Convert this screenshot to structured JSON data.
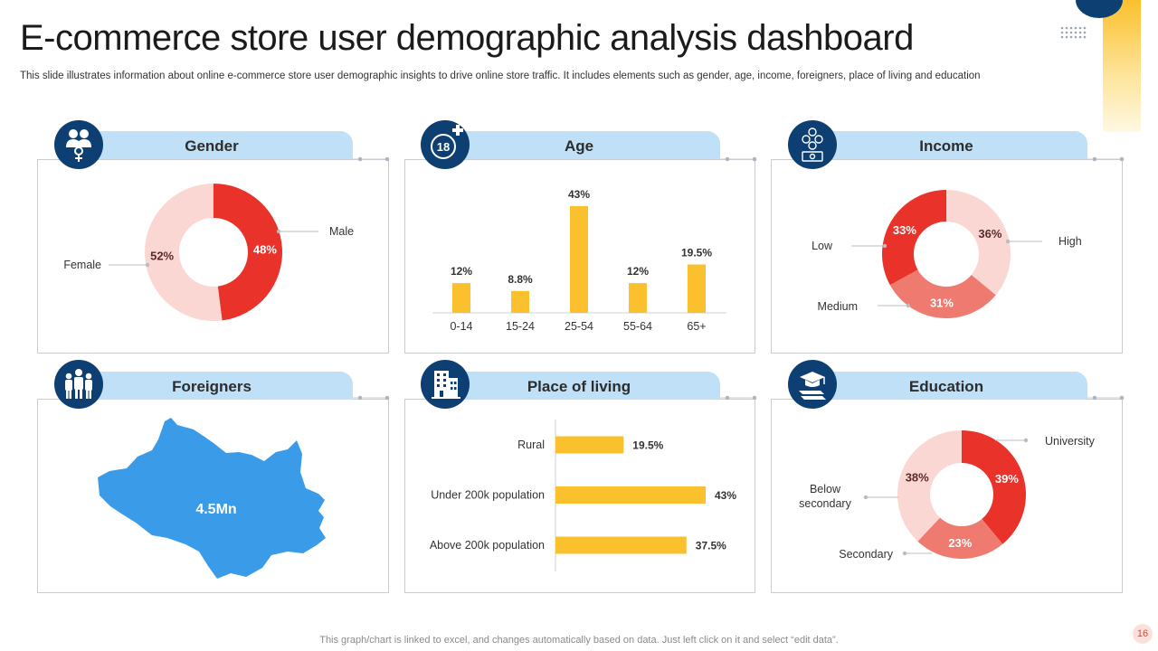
{
  "header": {
    "title": "E-commerce store user demographic analysis dashboard",
    "subtitle": "This slide illustrates information about online e-commerce store user demographic insights to drive online store traffic. It includes elements such as gender, age, income, foreigners, place of living and education"
  },
  "panels": {
    "gender": {
      "label": "Gender",
      "icon": "gender-icon"
    },
    "age": {
      "label": "Age",
      "icon": "age-18-plus-icon"
    },
    "income": {
      "label": "Income",
      "icon": "money-icon"
    },
    "foreigners": {
      "label": "Foreigners",
      "icon": "people-group-icon",
      "value": "4.5Mn",
      "map_color": "#3a9be8"
    },
    "place": {
      "label": "Place of living",
      "icon": "building-icon"
    },
    "education": {
      "label": "Education",
      "icon": "graduation-cap-icon"
    }
  },
  "chart_data": [
    {
      "id": "gender",
      "type": "pie",
      "labels": [
        "Male",
        "Female"
      ],
      "values": [
        48,
        52
      ],
      "display": [
        "48%",
        "52%"
      ],
      "colors": [
        "#e8322a",
        "#fbd7d3"
      ],
      "donut": true
    },
    {
      "id": "age",
      "type": "bar",
      "categories": [
        "0-14",
        "15-24",
        "25-54",
        "55-64",
        "65+"
      ],
      "values": [
        12,
        8.8,
        43,
        12,
        19.5
      ],
      "display": [
        "12%",
        "8.8%",
        "43%",
        "12%",
        "19.5%"
      ],
      "color": "#fbc02d",
      "ylim": [
        0,
        50
      ],
      "grid": false
    },
    {
      "id": "income",
      "type": "pie",
      "labels": [
        "High",
        "Medium",
        "Low"
      ],
      "values": [
        36,
        31,
        33
      ],
      "display": [
        "36%",
        "31%",
        "33%"
      ],
      "colors": [
        "#fbd7d3",
        "#ef7a70",
        "#e8322a"
      ],
      "donut": true
    },
    {
      "id": "place",
      "type": "bar",
      "orientation": "horizontal",
      "categories": [
        "Rural",
        "Under 200k population",
        "Above 200k population"
      ],
      "values": [
        19.5,
        43,
        37.5
      ],
      "display": [
        "19.5%",
        "43%",
        "37.5%"
      ],
      "color": "#fbc02d",
      "xlim": [
        0,
        50
      ],
      "grid": false
    },
    {
      "id": "education",
      "type": "pie",
      "labels": [
        "University",
        "Secondary",
        "Below secondary"
      ],
      "values": [
        39,
        23,
        38
      ],
      "display": [
        "39%",
        "23%",
        "38%"
      ],
      "colors": [
        "#e8322a",
        "#ef7a70",
        "#fbd7d3"
      ],
      "donut": true
    }
  ],
  "footer": {
    "note": "This graph/chart is linked to excel,  and changes automatically based on data. Just left click on it and select “edit data”.",
    "page_number": "16"
  }
}
